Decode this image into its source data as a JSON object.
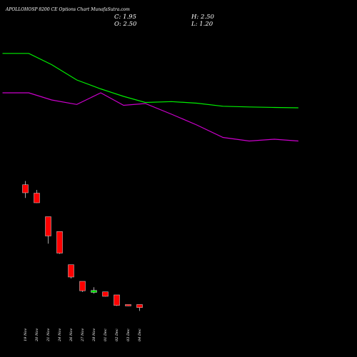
{
  "header": {
    "title": "APOLLOHOSP 8200 CE Options Chart MunafaSutra.com",
    "close": "C: 1.95",
    "open": "O: 2.50",
    "high": "H: 2.50",
    "low": "L: 1.20"
  },
  "colors": {
    "background": "#000000",
    "up": "#00e000",
    "down": "#ff0000",
    "ma_fast": "#00ee00",
    "ma_slow": "#cc00cc"
  },
  "chart_data": {
    "type": "candlestick",
    "categories": [
      "19 Nov",
      "20 Nov",
      "21 Nov",
      "24 Nov",
      "26 Nov",
      "27 Nov",
      "28 Nov",
      "01 Dec",
      "02 Dec",
      "03 Dec",
      "04 Dec"
    ],
    "candles": [
      {
        "open": 40.5,
        "high": 42.6,
        "low": 33.1,
        "close": 36.0
      },
      {
        "open": 35.8,
        "high": 37.6,
        "low": 30.3,
        "close": 30.4
      },
      {
        "open": 22.6,
        "high": 22.6,
        "low": 7.5,
        "close": 11.8
      },
      {
        "open": 14.3,
        "high": 14.3,
        "low": 1.8,
        "close": 2.2
      },
      {
        "open": -4.3,
        "high": -4.3,
        "low": -12.0,
        "close": -11.2
      },
      {
        "open": -13.6,
        "high": -13.6,
        "low": -19.5,
        "close": -18.9
      },
      {
        "open": -19.8,
        "high": -16.9,
        "low": -20.5,
        "close": -18.7
      },
      {
        "open": -19.5,
        "high": -19.5,
        "low": -22.1,
        "close": -22.0
      },
      {
        "open": -21.2,
        "high": -21.2,
        "low": -27.4,
        "close": -27.1
      },
      {
        "open": -26.6,
        "high": -26.6,
        "low": -27.5,
        "close": -27.3
      },
      {
        "open": -26.6,
        "high": -26.6,
        "low": -30.2,
        "close": -28.3
      }
    ],
    "ma_fast": {
      "x": [
        -2.0,
        0.3,
        2.3,
        4.5,
        6.6,
        8.6,
        10.5,
        12.8,
        15.0,
        17.3,
        19.6,
        21.8,
        23.9
      ],
      "values": [
        114.1,
        114.1,
        107.8,
        99.2,
        94.2,
        90.0,
        86.6,
        87.1,
        86.2,
        84.5,
        84.1,
        83.8,
        83.6
      ]
    },
    "ma_slow": {
      "x": [
        -2.0,
        0.3,
        2.3,
        4.5,
        6.6,
        8.6,
        10.5,
        12.8,
        15.0,
        17.3,
        19.6,
        21.8,
        23.9
      ],
      "values": [
        92.0,
        92.0,
        88.0,
        85.5,
        92.0,
        85.0,
        86.0,
        80.0,
        74.0,
        67.0,
        65.0,
        66.0,
        65.0
      ]
    }
  }
}
